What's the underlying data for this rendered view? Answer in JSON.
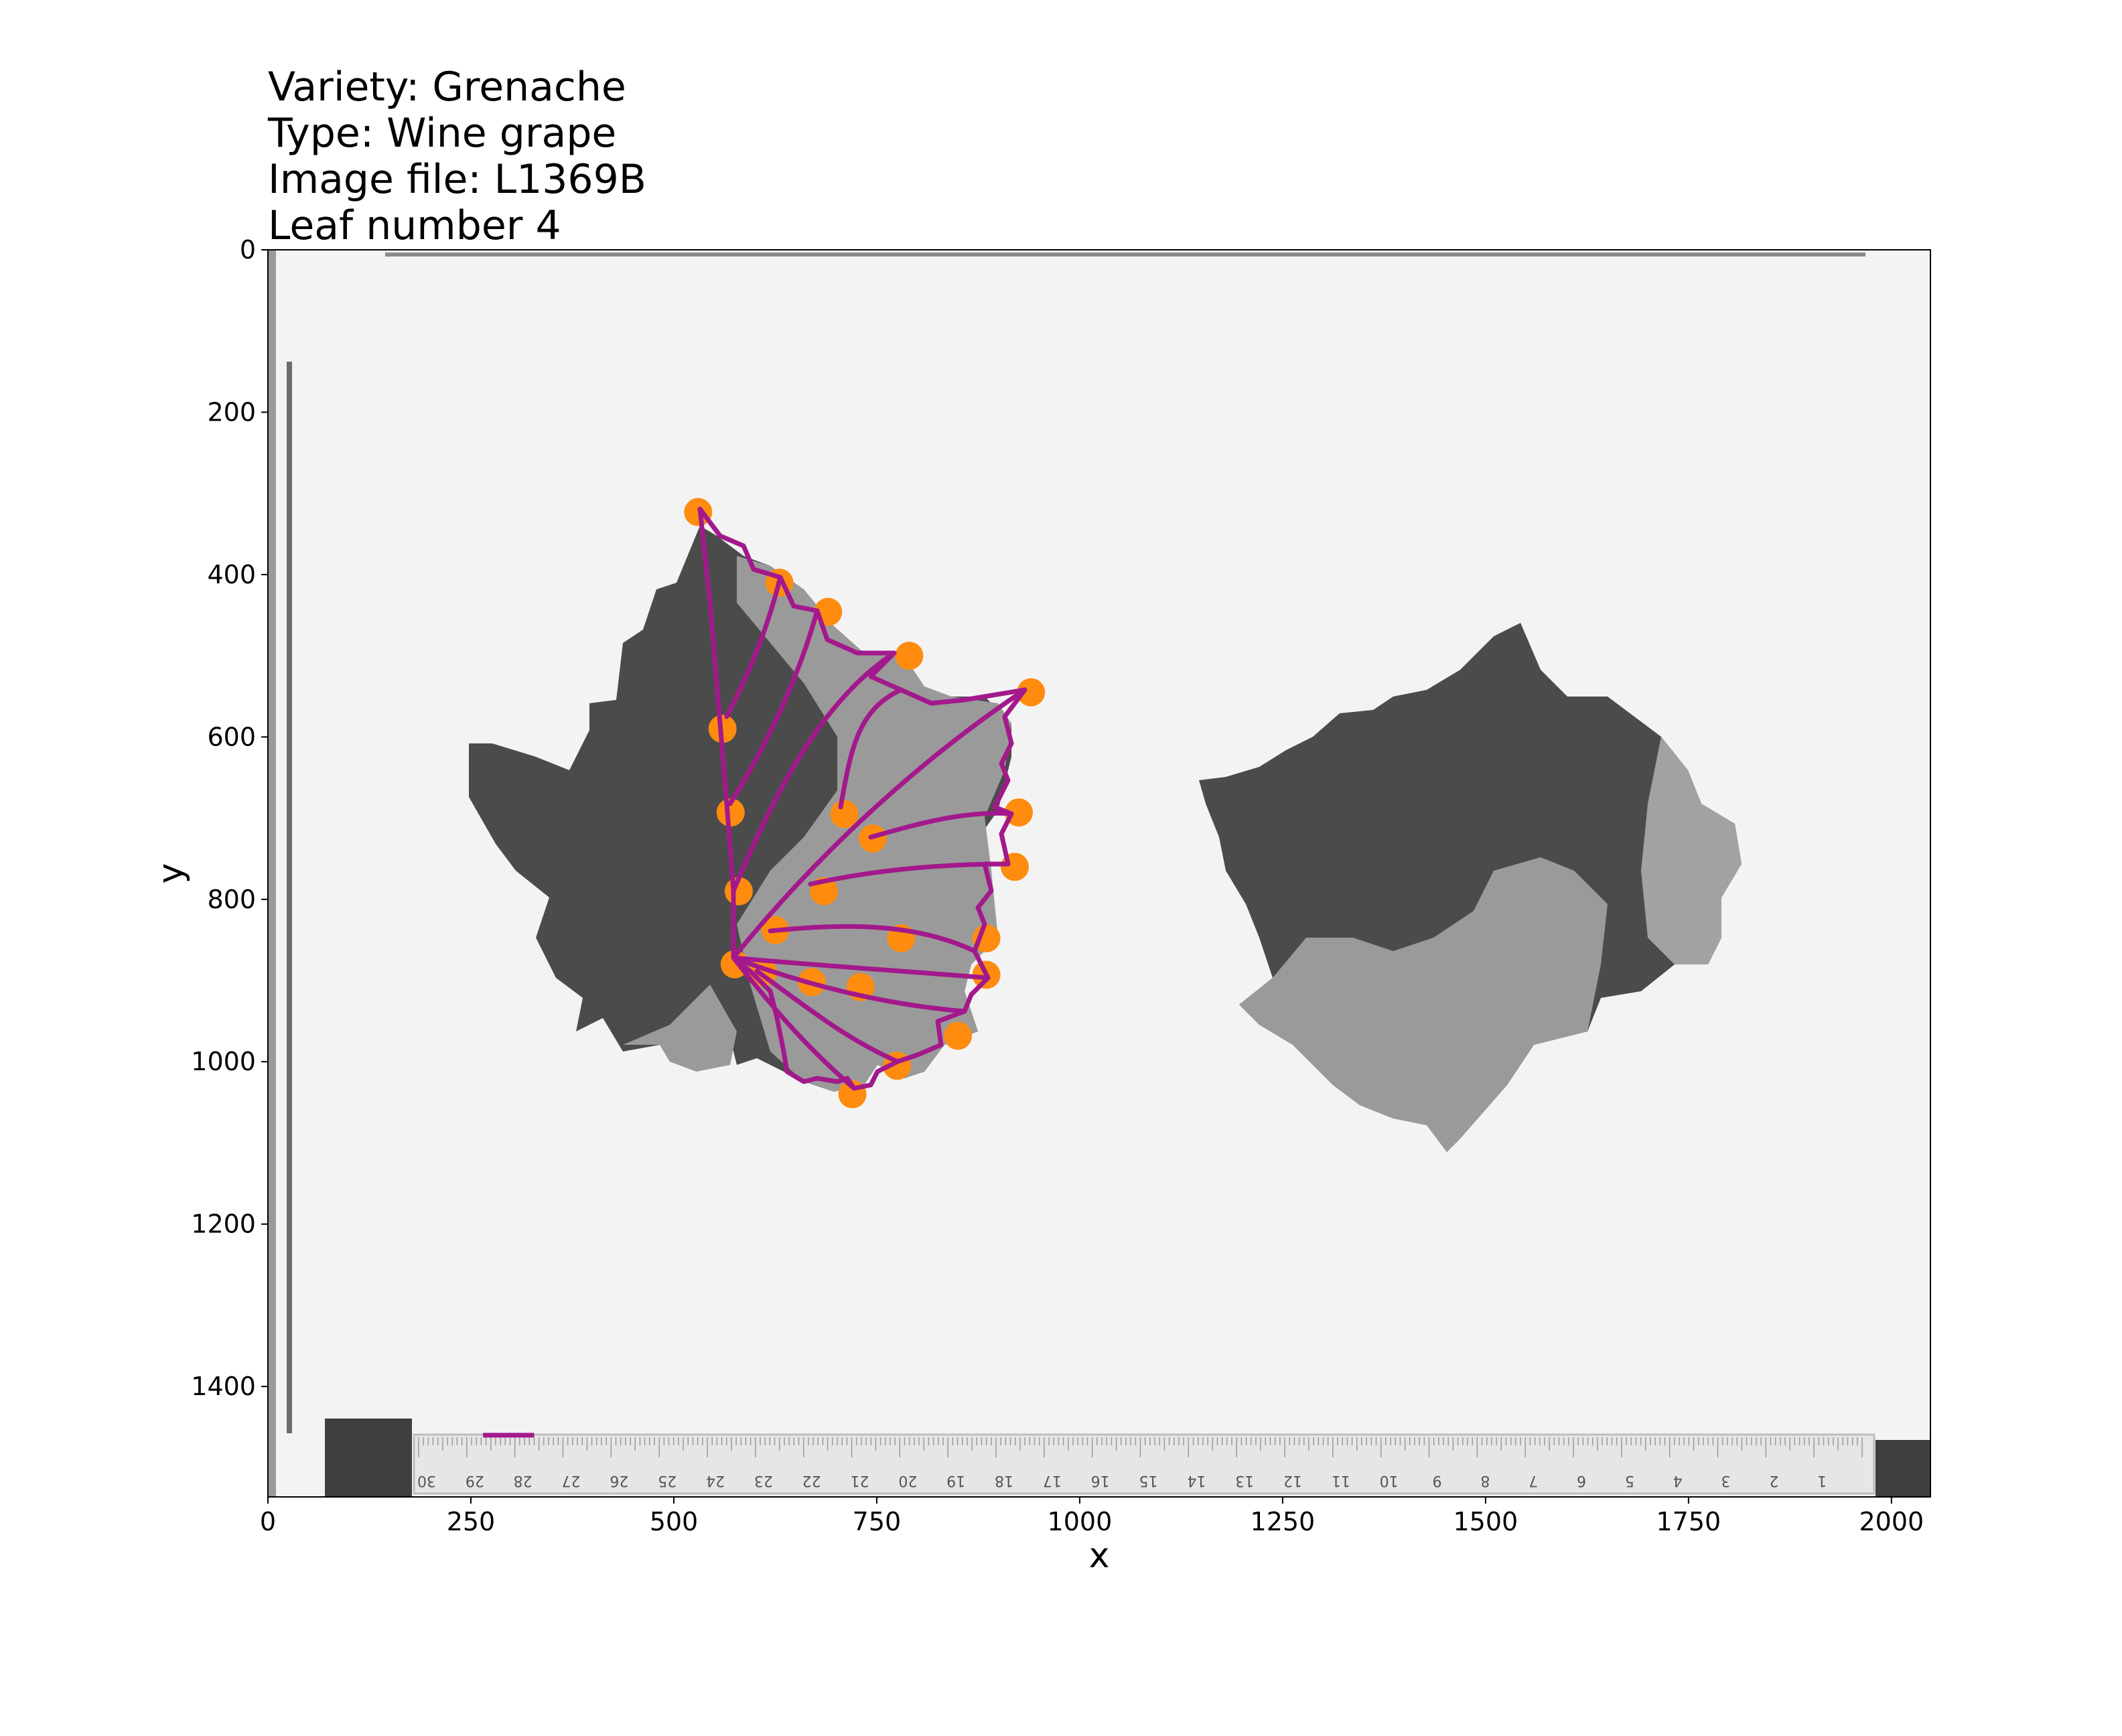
{
  "title_lines": [
    "Variety: Grenache",
    "Type: Wine grape",
    "Image file: L1369B",
    "Leaf number 4"
  ],
  "colors": {
    "landmark": "#ff8c0f",
    "outline": "#a3198c",
    "leaf_dark": "#4a4a4a",
    "leaf_light": "#9c9c9c",
    "background": "#f2f2f2"
  },
  "chart_data": {
    "type": "scatter",
    "title": "Variety: Grenache\nType: Wine grape\nImage file: L1369B\nLeaf number 4",
    "xlabel": "x",
    "ylabel": "y",
    "xlim": [
      0,
      2048
    ],
    "ylim": [
      1536,
      0
    ],
    "xticks": [
      0,
      250,
      500,
      750,
      1000,
      1250,
      1500,
      1750,
      2000
    ],
    "yticks": [
      0,
      200,
      400,
      600,
      800,
      1000,
      1200,
      1400
    ],
    "landmarks": [
      {
        "x": 530,
        "y": 323
      },
      {
        "x": 630,
        "y": 410
      },
      {
        "x": 690,
        "y": 446
      },
      {
        "x": 790,
        "y": 500
      },
      {
        "x": 940,
        "y": 545
      },
      {
        "x": 560,
        "y": 590
      },
      {
        "x": 570,
        "y": 693
      },
      {
        "x": 710,
        "y": 695
      },
      {
        "x": 745,
        "y": 725
      },
      {
        "x": 925,
        "y": 693
      },
      {
        "x": 920,
        "y": 760
      },
      {
        "x": 580,
        "y": 790
      },
      {
        "x": 685,
        "y": 790
      },
      {
        "x": 625,
        "y": 838
      },
      {
        "x": 780,
        "y": 848
      },
      {
        "x": 885,
        "y": 848
      },
      {
        "x": 575,
        "y": 880
      },
      {
        "x": 610,
        "y": 890
      },
      {
        "x": 670,
        "y": 902
      },
      {
        "x": 730,
        "y": 908
      },
      {
        "x": 885,
        "y": 893
      },
      {
        "x": 850,
        "y": 968
      },
      {
        "x": 775,
        "y": 1005
      },
      {
        "x": 720,
        "y": 1040
      }
    ],
    "scale_bar": {
      "x": [
        265,
        328
      ],
      "y": 1460
    }
  }
}
